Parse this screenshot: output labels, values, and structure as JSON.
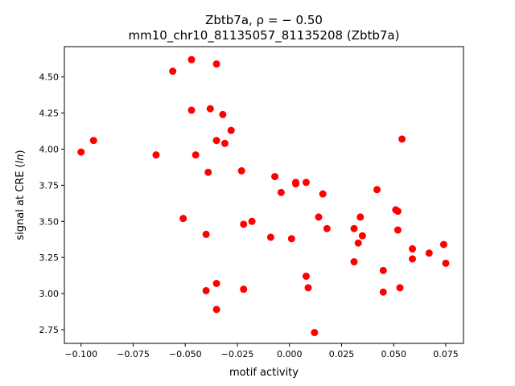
{
  "chart_data": {
    "type": "scatter",
    "title_line1": "Zbtb7a, ρ = − 0.50",
    "title_line2": "mm10_chr10_81135057_81135208 (Zbtb7a)",
    "xlabel": "motif activity",
    "ylabel": "signal at CRE (ln)",
    "xlim": [
      -0.108,
      0.0835
    ],
    "ylim": [
      2.655,
      4.71
    ],
    "xticks": [
      -0.1,
      -0.075,
      -0.05,
      -0.025,
      0.0,
      0.025,
      0.05,
      0.075
    ],
    "xtick_labels": [
      "−0.100",
      "−0.075",
      "−0.050",
      "−0.025",
      "0.000",
      "0.025",
      "0.050",
      "0.075"
    ],
    "yticks": [
      2.75,
      3.0,
      3.25,
      3.5,
      3.75,
      4.0,
      4.25,
      4.5
    ],
    "ytick_labels": [
      "2.75",
      "3.00",
      "3.25",
      "3.50",
      "3.75",
      "4.00",
      "4.25",
      "4.50"
    ],
    "grid": false,
    "marker_color": "#ff0000",
    "points": [
      {
        "x": -0.1,
        "y": 3.98
      },
      {
        "x": -0.094,
        "y": 4.06
      },
      {
        "x": -0.064,
        "y": 3.96
      },
      {
        "x": -0.056,
        "y": 4.54
      },
      {
        "x": -0.051,
        "y": 3.52
      },
      {
        "x": -0.047,
        "y": 4.62
      },
      {
        "x": -0.047,
        "y": 4.27
      },
      {
        "x": -0.045,
        "y": 3.96
      },
      {
        "x": -0.04,
        "y": 3.41
      },
      {
        "x": -0.04,
        "y": 3.02
      },
      {
        "x": -0.039,
        "y": 3.84
      },
      {
        "x": -0.038,
        "y": 4.28
      },
      {
        "x": -0.035,
        "y": 4.59
      },
      {
        "x": -0.035,
        "y": 4.06
      },
      {
        "x": -0.035,
        "y": 3.07
      },
      {
        "x": -0.035,
        "y": 2.89
      },
      {
        "x": -0.032,
        "y": 4.24
      },
      {
        "x": -0.031,
        "y": 4.04
      },
      {
        "x": -0.028,
        "y": 4.13
      },
      {
        "x": -0.023,
        "y": 3.85
      },
      {
        "x": -0.022,
        "y": 3.48
      },
      {
        "x": -0.022,
        "y": 3.03
      },
      {
        "x": -0.018,
        "y": 3.5
      },
      {
        "x": -0.009,
        "y": 3.39
      },
      {
        "x": -0.007,
        "y": 3.81
      },
      {
        "x": -0.004,
        "y": 3.7
      },
      {
        "x": 0.001,
        "y": 3.38
      },
      {
        "x": 0.003,
        "y": 3.77
      },
      {
        "x": 0.003,
        "y": 3.76
      },
      {
        "x": 0.008,
        "y": 3.77
      },
      {
        "x": 0.008,
        "y": 3.12
      },
      {
        "x": 0.009,
        "y": 3.04
      },
      {
        "x": 0.012,
        "y": 2.73
      },
      {
        "x": 0.014,
        "y": 3.53
      },
      {
        "x": 0.016,
        "y": 3.69
      },
      {
        "x": 0.018,
        "y": 3.45
      },
      {
        "x": 0.031,
        "y": 3.22
      },
      {
        "x": 0.031,
        "y": 3.45
      },
      {
        "x": 0.033,
        "y": 3.35
      },
      {
        "x": 0.034,
        "y": 3.53
      },
      {
        "x": 0.035,
        "y": 3.4
      },
      {
        "x": 0.042,
        "y": 3.72
      },
      {
        "x": 0.045,
        "y": 3.16
      },
      {
        "x": 0.045,
        "y": 3.01
      },
      {
        "x": 0.051,
        "y": 3.58
      },
      {
        "x": 0.052,
        "y": 3.57
      },
      {
        "x": 0.052,
        "y": 3.44
      },
      {
        "x": 0.053,
        "y": 3.04
      },
      {
        "x": 0.054,
        "y": 4.07
      },
      {
        "x": 0.059,
        "y": 3.31
      },
      {
        "x": 0.059,
        "y": 3.24
      },
      {
        "x": 0.067,
        "y": 3.28
      },
      {
        "x": 0.074,
        "y": 3.34
      },
      {
        "x": 0.075,
        "y": 3.21
      }
    ]
  }
}
